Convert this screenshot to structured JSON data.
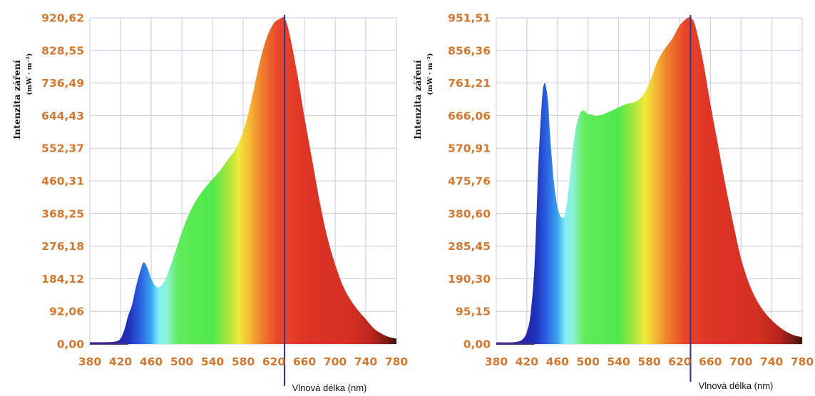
{
  "chart_data": [
    {
      "type": "area",
      "ylabel": "Intenzita záření",
      "yunit": "(mW · m⁻²)",
      "xlabel": "Vlnová délka (nm)",
      "xticks": [
        "380",
        "420",
        "460",
        "500",
        "540",
        "580",
        "620",
        "660",
        "700",
        "740",
        "780"
      ],
      "yticks": [
        "0,00",
        "92,06",
        "184,12",
        "276,18",
        "368,25",
        "460,31",
        "552,37",
        "644,43",
        "736,49",
        "828,55",
        "920,62"
      ],
      "xlim": [
        380,
        780
      ],
      "ylim": [
        0,
        920.62
      ],
      "marker_x": 634,
      "grid": true,
      "x": [
        380,
        400,
        410,
        415,
        420,
        425,
        430,
        435,
        440,
        445,
        450,
        455,
        460,
        465,
        470,
        475,
        480,
        490,
        500,
        510,
        520,
        530,
        540,
        550,
        560,
        570,
        580,
        590,
        600,
        610,
        620,
        630,
        634,
        640,
        650,
        660,
        670,
        680,
        690,
        700,
        710,
        720,
        730,
        740,
        750,
        760,
        770,
        780
      ],
      "y": [
        5,
        5,
        6,
        8,
        15,
        40,
        80,
        110,
        160,
        200,
        230,
        215,
        185,
        165,
        160,
        170,
        190,
        250,
        315,
        370,
        410,
        440,
        465,
        490,
        520,
        550,
        600,
        680,
        780,
        860,
        905,
        920,
        920,
        880,
        770,
        640,
        520,
        400,
        300,
        225,
        165,
        125,
        95,
        70,
        45,
        30,
        20,
        15
      ]
    },
    {
      "type": "area",
      "ylabel": "Intenzita záření",
      "yunit": "(mW · m⁻²)",
      "xlabel": "Vlnová délka (nm)",
      "xticks": [
        "380",
        "420",
        "460",
        "500",
        "540",
        "580",
        "620",
        "660",
        "700",
        "740",
        "780"
      ],
      "yticks": [
        "0,00",
        "95,15",
        "190,30",
        "285,45",
        "380,60",
        "475,76",
        "570,91",
        "666,06",
        "761,21",
        "856,36",
        "951,51"
      ],
      "xlim": [
        380,
        780
      ],
      "ylim": [
        0,
        951.51
      ],
      "marker_x": 634,
      "grid": true,
      "x": [
        380,
        400,
        410,
        415,
        420,
        425,
        430,
        435,
        440,
        443,
        445,
        448,
        450,
        455,
        460,
        465,
        470,
        475,
        480,
        485,
        490,
        495,
        500,
        505,
        510,
        520,
        530,
        540,
        550,
        560,
        570,
        580,
        590,
        600,
        610,
        620,
        630,
        634,
        640,
        650,
        660,
        670,
        680,
        690,
        700,
        710,
        720,
        730,
        740,
        750,
        760,
        770,
        780
      ],
      "y": [
        5,
        5,
        8,
        15,
        35,
        90,
        230,
        520,
        720,
        760,
        750,
        700,
        620,
        480,
        400,
        370,
        380,
        460,
        570,
        640,
        675,
        680,
        670,
        670,
        665,
        670,
        680,
        690,
        700,
        705,
        720,
        760,
        820,
        860,
        890,
        930,
        951,
        951,
        930,
        830,
        700,
        580,
        460,
        350,
        250,
        180,
        130,
        95,
        70,
        50,
        35,
        25,
        20
      ]
    }
  ],
  "spectrum_colors": [
    "#1d1a8e",
    "#2233cc",
    "#2a7fe0",
    "#55c8f0",
    "#7ff0f0",
    "#6ef06a",
    "#4ee84a",
    "#9ee63a",
    "#f2e83a",
    "#f4b030",
    "#ee7a2a",
    "#e8432a",
    "#de3426",
    "#d83022",
    "#b8251c",
    "#6e1a14",
    "#3a100c"
  ],
  "colors": {
    "tick": "#d2772f",
    "grid": "#c8c8dc",
    "marker": "#3a3a8a",
    "baseline": "#4a2a7a"
  }
}
